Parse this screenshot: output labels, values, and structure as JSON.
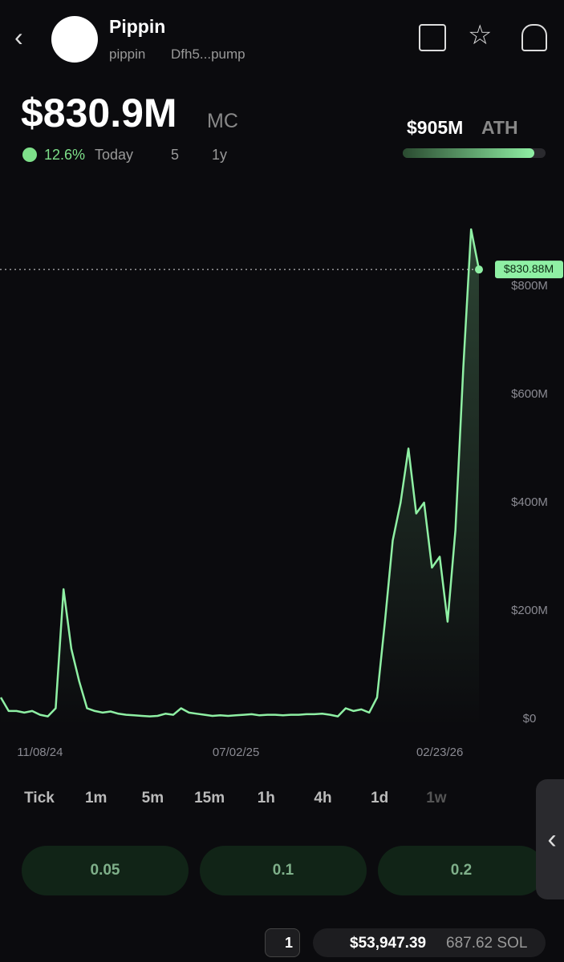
{
  "header": {
    "name": "Pippin",
    "ticker": "pippin",
    "address": "Dfh5...pump"
  },
  "market_cap": {
    "value": "$830.9M",
    "unit": "MC",
    "change": "12.6%",
    "period": "Today",
    "watchers": "5",
    "age": "1y"
  },
  "ath": {
    "value": "$905M",
    "label": "ATH"
  },
  "chart_data": {
    "type": "line",
    "categories": [
      null,
      null,
      null,
      null,
      null,
      "11/08/24",
      null,
      null,
      null,
      null,
      null,
      null,
      null,
      null,
      null,
      null,
      null,
      null,
      null,
      null,
      null,
      null,
      null,
      null,
      null,
      null,
      null,
      null,
      null,
      null,
      "07/02/25",
      null,
      null,
      null,
      null,
      null,
      null,
      null,
      null,
      null,
      null,
      null,
      null,
      null,
      null,
      null,
      null,
      null,
      null,
      null,
      null,
      null,
      null,
      null,
      null,
      null,
      "02/23/26",
      null,
      null,
      null,
      null,
      null
    ],
    "series": [
      {
        "color": "#8ff0a4",
        "values": [
          40,
          15,
          15,
          12,
          15,
          8,
          5,
          20,
          240,
          130,
          70,
          20,
          15,
          12,
          14,
          10,
          8,
          7,
          6,
          5,
          6,
          10,
          8,
          20,
          12,
          10,
          8,
          6,
          7,
          6,
          7,
          8,
          9,
          7,
          8,
          8,
          7,
          8,
          8,
          9,
          9,
          10,
          8,
          5,
          20,
          15,
          18,
          12,
          40,
          180,
          330,
          400,
          500,
          380,
          400,
          280,
          300,
          180,
          350,
          650,
          905,
          830.88
        ]
      }
    ],
    "ylim": [
      0,
      1000
    ],
    "yticks": [
      {
        "value": 0,
        "label": "$0"
      },
      {
        "value": 200,
        "label": "$200M"
      },
      {
        "value": 400,
        "label": "$400M"
      },
      {
        "value": 600,
        "label": "$600M"
      },
      {
        "value": 800,
        "label": "$800M"
      }
    ],
    "current": {
      "value": 830.88,
      "label": "$830.88M"
    }
  },
  "timeframes": [
    "Tick",
    "1m",
    "5m",
    "15m",
    "1h",
    "4h",
    "1d",
    "1w"
  ],
  "amounts": [
    "0.05",
    "0.1",
    "0.2"
  ],
  "footer": {
    "count": "1",
    "balance": "$53,947.39",
    "sol": "687.62 SOL"
  }
}
